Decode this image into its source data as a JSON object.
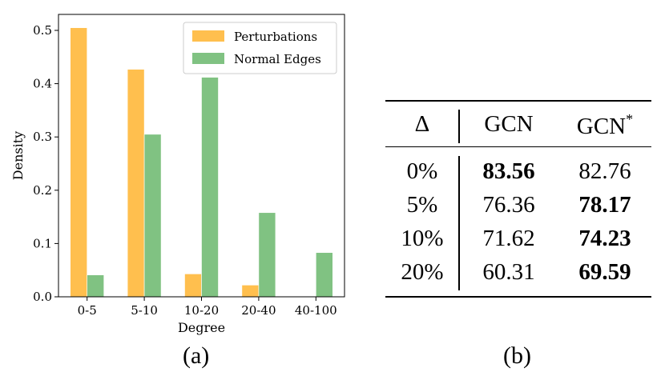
{
  "chart_data": {
    "type": "bar",
    "categories": [
      "0-5",
      "5-10",
      "10-20",
      "20-40",
      "40-100"
    ],
    "series": [
      {
        "name": "Perturbations",
        "values": [
          0.505,
          0.427,
          0.043,
          0.022,
          0.0
        ],
        "color": "#FFBF4E"
      },
      {
        "name": "Normal Edges",
        "values": [
          0.041,
          0.305,
          0.412,
          0.158,
          0.083
        ],
        "color": "#80C282"
      }
    ],
    "xlabel": "Degree",
    "ylabel": "Density",
    "ylim": [
      0,
      0.53
    ],
    "yticks": [
      "0.0",
      "0.1",
      "0.2",
      "0.3",
      "0.4",
      "0.5"
    ],
    "legend_position": "top-right",
    "grid": false
  },
  "captions": {
    "a": "(a)",
    "b": "(b)"
  },
  "table": {
    "header": {
      "delta": "Δ",
      "col1": "GCN",
      "col2": "GCN",
      "col2_sup": "*"
    },
    "rows": [
      {
        "delta": "0%",
        "gcn": "83.56",
        "gcn_star": "82.76",
        "bold": "gcn"
      },
      {
        "delta": "5%",
        "gcn": "76.36",
        "gcn_star": "78.17",
        "bold": "gcn_star"
      },
      {
        "delta": "10%",
        "gcn": "71.62",
        "gcn_star": "74.23",
        "bold": "gcn_star"
      },
      {
        "delta": "20%",
        "gcn": "60.31",
        "gcn_star": "69.59",
        "bold": "gcn_star"
      }
    ]
  }
}
